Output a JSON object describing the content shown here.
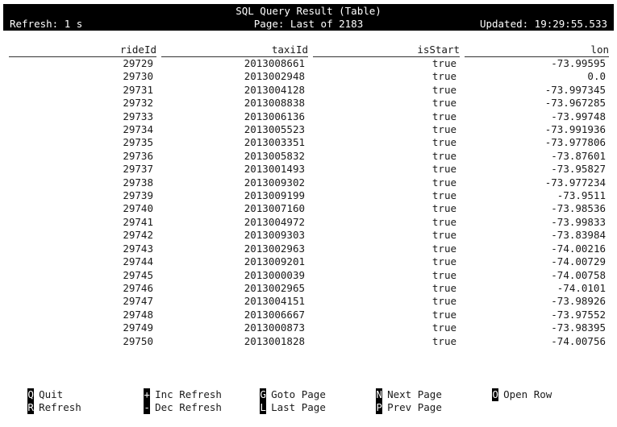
{
  "header": {
    "title": "SQL Query Result (Table)",
    "refresh": "Refresh: 1 s",
    "page": "Page: Last of 2183",
    "updated": "Updated: 19:29:55.533"
  },
  "table": {
    "columns": [
      "rideId",
      "taxiId",
      "isStart",
      "lon"
    ],
    "rows": [
      [
        "29729",
        "2013008661",
        "true",
        "-73.99595"
      ],
      [
        "29730",
        "2013002948",
        "true",
        "0.0"
      ],
      [
        "29731",
        "2013004128",
        "true",
        "-73.997345"
      ],
      [
        "29732",
        "2013008838",
        "true",
        "-73.967285"
      ],
      [
        "29733",
        "2013006136",
        "true",
        "-73.99748"
      ],
      [
        "29734",
        "2013005523",
        "true",
        "-73.991936"
      ],
      [
        "29735",
        "2013003351",
        "true",
        "-73.977806"
      ],
      [
        "29736",
        "2013005832",
        "true",
        "-73.87601"
      ],
      [
        "29737",
        "2013001493",
        "true",
        "-73.95827"
      ],
      [
        "29738",
        "2013009302",
        "true",
        "-73.977234"
      ],
      [
        "29739",
        "2013009199",
        "true",
        "-73.9511"
      ],
      [
        "29740",
        "2013007160",
        "true",
        "-73.98536"
      ],
      [
        "29741",
        "2013004972",
        "true",
        "-73.99833"
      ],
      [
        "29742",
        "2013009303",
        "true",
        "-73.83984"
      ],
      [
        "29743",
        "2013002963",
        "true",
        "-74.00216"
      ],
      [
        "29744",
        "2013009201",
        "true",
        "-74.00729"
      ],
      [
        "29745",
        "2013000039",
        "true",
        "-74.00758"
      ],
      [
        "29746",
        "2013002965",
        "true",
        "-74.0101"
      ],
      [
        "29747",
        "2013004151",
        "true",
        "-73.98926"
      ],
      [
        "29748",
        "2013006667",
        "true",
        "-73.97552"
      ],
      [
        "29749",
        "2013000873",
        "true",
        "-73.98395"
      ],
      [
        "29750",
        "2013001828",
        "true",
        "-74.00756"
      ]
    ]
  },
  "footer": {
    "keys": [
      {
        "key": "Q",
        "label": "Quit",
        "name": "quit"
      },
      {
        "key": "R",
        "label": "Refresh",
        "name": "refresh"
      },
      {
        "key": "+",
        "label": "Inc Refresh",
        "name": "inc-refresh"
      },
      {
        "key": "-",
        "label": "Dec Refresh",
        "name": "dec-refresh"
      },
      {
        "key": "G",
        "label": "Goto Page",
        "name": "goto-page"
      },
      {
        "key": "L",
        "label": "Last Page",
        "name": "last-page"
      },
      {
        "key": "N",
        "label": "Next Page",
        "name": "next-page"
      },
      {
        "key": "P",
        "label": "Prev Page",
        "name": "prev-page"
      },
      {
        "key": "O",
        "label": "Open Row",
        "name": "open-row"
      }
    ]
  }
}
